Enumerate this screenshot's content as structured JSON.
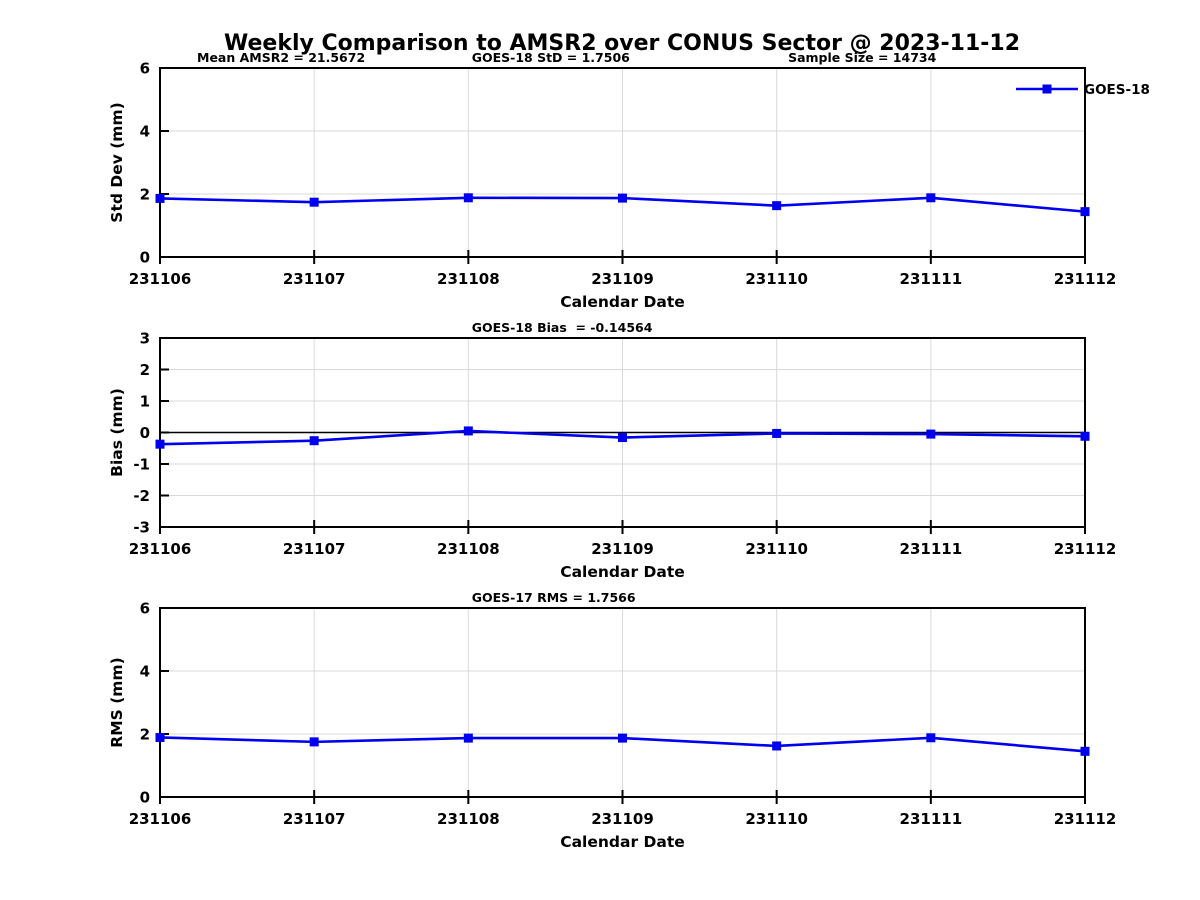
{
  "title": "Weekly Comparison to AMSR2 over CONUS Sector @ 2023-11-12",
  "colors": {
    "line": "#0000EE",
    "grid": "#D9D9D9",
    "axis": "#000000",
    "text": "#000000",
    "zero_line": "#000000"
  },
  "legend": {
    "label": "GOES-18",
    "position": "top-right"
  },
  "chart_data": [
    {
      "type": "line",
      "panel": "std-dev",
      "ylabel": "Std Dev (mm)",
      "xlabel": "Calendar Date",
      "categories": [
        "231106",
        "231107",
        "231108",
        "231109",
        "231110",
        "231111",
        "231112"
      ],
      "series": [
        {
          "name": "GOES-18",
          "values": [
            1.86,
            1.74,
            1.88,
            1.87,
            1.63,
            1.88,
            1.44
          ]
        }
      ],
      "ylim": [
        0,
        6
      ],
      "yticks": [
        0,
        2,
        4,
        6
      ],
      "grid": true,
      "zero_line": false,
      "show_legend": true,
      "annotations": [
        {
          "text": "Mean AMSR2 = 21.5672",
          "fx": 0.04
        },
        {
          "text": "GOES-18 StD = 1.7506",
          "fx": 0.337
        },
        {
          "text": "Sample Size = 14734",
          "fx": 0.679
        }
      ]
    },
    {
      "type": "line",
      "panel": "bias",
      "ylabel": "Bias (mm)",
      "xlabel": "Calendar Date",
      "categories": [
        "231106",
        "231107",
        "231108",
        "231109",
        "231110",
        "231111",
        "231112"
      ],
      "series": [
        {
          "name": "GOES-18",
          "values": [
            -0.37,
            -0.26,
            0.05,
            -0.16,
            -0.03,
            -0.05,
            -0.12
          ]
        }
      ],
      "ylim": [
        -3,
        3
      ],
      "yticks": [
        3,
        2,
        1,
        0,
        -1,
        -2,
        -3
      ],
      "grid": true,
      "zero_line": true,
      "show_legend": false,
      "annotations": [
        {
          "text": "GOES-18 Bias  = -0.14564",
          "fx": 0.337
        }
      ]
    },
    {
      "type": "line",
      "panel": "rms",
      "ylabel": "RMS (mm)",
      "xlabel": "Calendar Date",
      "categories": [
        "231106",
        "231107",
        "231108",
        "231109",
        "231110",
        "231111",
        "231112"
      ],
      "series": [
        {
          "name": "GOES-18",
          "values": [
            1.89,
            1.75,
            1.87,
            1.87,
            1.62,
            1.88,
            1.45
          ]
        }
      ],
      "ylim": [
        0,
        6
      ],
      "yticks": [
        0,
        2,
        4,
        6
      ],
      "grid": true,
      "zero_line": false,
      "show_legend": false,
      "annotations": [
        {
          "text": "GOES-17 RMS = 1.7566",
          "fx": 0.337
        }
      ]
    }
  ]
}
